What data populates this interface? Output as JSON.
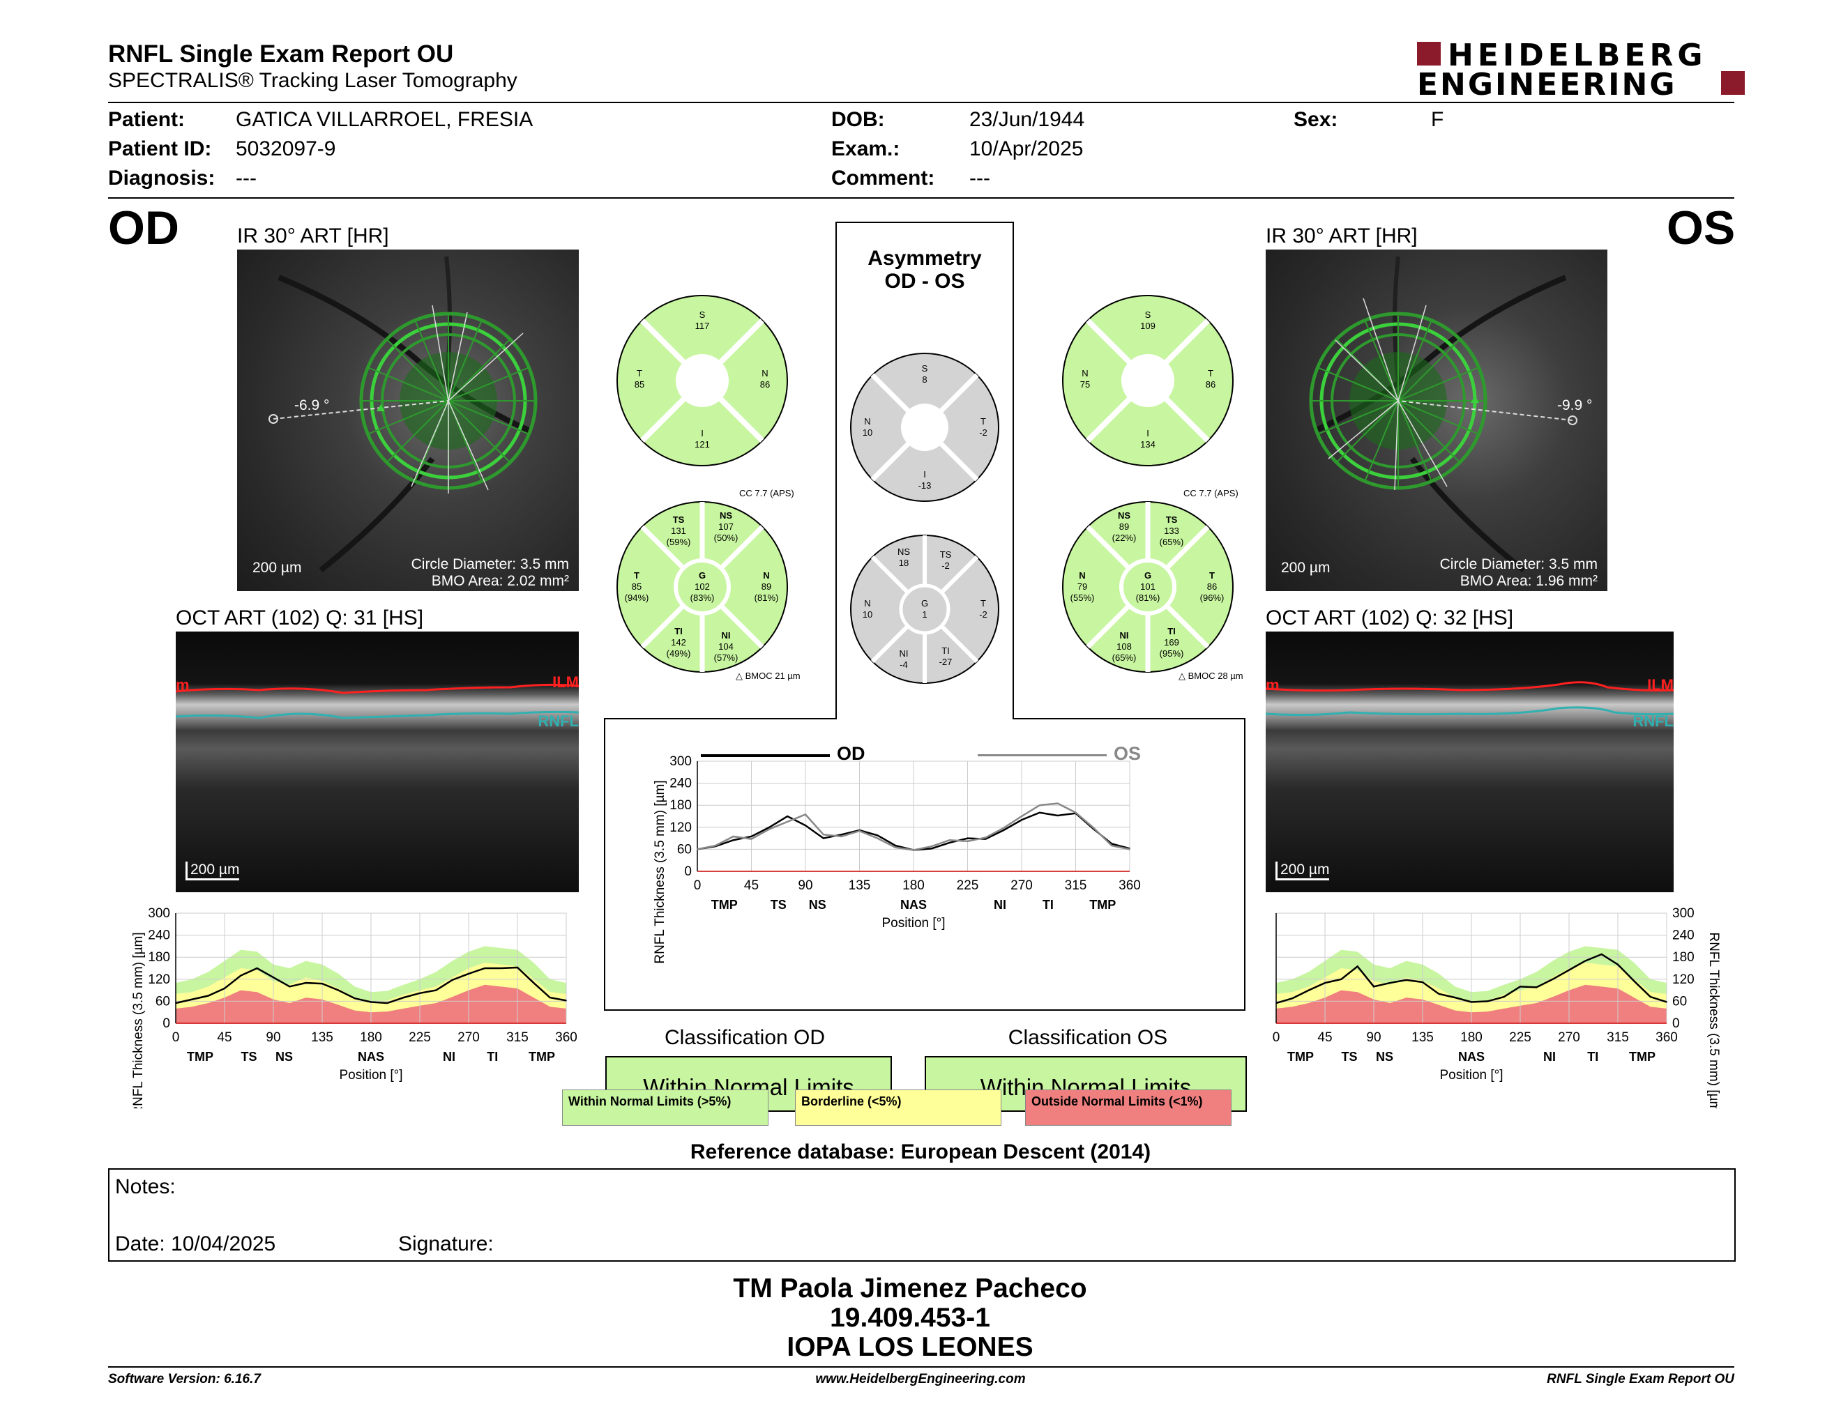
{
  "header": {
    "title": "RNFL Single Exam Report OU",
    "subtitle": "SPECTRALIS® Tracking Laser Tomography",
    "brand_line1": "HEIDELBERG",
    "brand_line2": "ENGINEERING",
    "brand_color": "#8b1a2b"
  },
  "patient": {
    "patient_label": "Patient:",
    "patient_value": "GATICA VILLARROEL, FRESIA",
    "id_label": "Patient ID:",
    "id_value": "5032097-9",
    "diagnosis_label": "Diagnosis:",
    "diagnosis_value": "---",
    "dob_label": "DOB:",
    "dob_value": "23/Jun/1944",
    "exam_label": "Exam.:",
    "exam_value": "10/Apr/2025",
    "comment_label": "Comment:",
    "comment_value": "---",
    "sex_label": "Sex:",
    "sex_value": "F"
  },
  "od": {
    "eye": "OD",
    "ir_title": "IR 30° ART [HR]",
    "angle": "-6.9 °",
    "scale": "200 µm",
    "circle_diameter": "Circle Diameter: 3.5 mm",
    "bmo_area": "BMO Area: 2.02 mm²",
    "oct_title": "OCT ART (102) Q: 31 [HS]",
    "oct_scale": "200 µm",
    "ilm": "ILM",
    "ilm_left": "m",
    "rnfl": "RNFL",
    "quad": {
      "s": "S",
      "s_val": "117",
      "t": "T",
      "t_val": "85",
      "n": "N",
      "n_val": "86",
      "i": "I",
      "i_val": "121"
    },
    "cc": "CC 7.7 (APS)",
    "bmoc": "BMOC 21 µm",
    "sectors": {
      "ts": [
        "TS",
        "131",
        "(59%)"
      ],
      "ns": [
        "NS",
        "107",
        "(50%)"
      ],
      "t": [
        "T",
        "85",
        "(94%)"
      ],
      "g": [
        "G",
        "102",
        "(83%)"
      ],
      "n": [
        "N",
        "89",
        "(81%)"
      ],
      "ti": [
        "TI",
        "142",
        "(49%)"
      ],
      "ni": [
        "NI",
        "104",
        "(57%)"
      ]
    },
    "classification_title": "Classification OD",
    "classification_value": "Within Normal Limits"
  },
  "os": {
    "eye": "OS",
    "ir_title": "IR 30° ART [HR]",
    "angle": "-9.9 °",
    "scale": "200 µm",
    "circle_diameter": "Circle Diameter: 3.5 mm",
    "bmo_area": "BMO Area: 1.96 mm²",
    "oct_title": "OCT ART (102) Q: 32 [HS]",
    "oct_scale": "200 µm",
    "ilm": "ILM",
    "ilm_left": "m",
    "rnfl": "RNFL",
    "quad": {
      "s": "S",
      "s_val": "109",
      "n": "N",
      "n_val": "75",
      "t": "T",
      "t_val": "86",
      "i": "I",
      "i_val": "134"
    },
    "cc": "CC 7.7 (APS)",
    "bmoc": "BMOC 28 µm",
    "sectors": {
      "ns": [
        "NS",
        "89",
        "(22%)"
      ],
      "ts": [
        "TS",
        "133",
        "(65%)"
      ],
      "n": [
        "N",
        "79",
        "(55%)"
      ],
      "g": [
        "G",
        "101",
        "(81%)"
      ],
      "t": [
        "T",
        "86",
        "(96%)"
      ],
      "ni": [
        "NI",
        "108",
        "(65%)"
      ],
      "ti": [
        "TI",
        "169",
        "(95%)"
      ]
    },
    "classification_title": "Classification OS",
    "classification_value": "Within Normal Limits"
  },
  "asym": {
    "title1": "Asymmetry",
    "title2": "OD - OS",
    "quad": {
      "s": "S",
      "s_val": "8",
      "n": "N",
      "n_val": "10",
      "t": "T",
      "t_val": "-2",
      "i": "I",
      "i_val": "-13"
    },
    "sectors": {
      "ns": [
        "NS",
        "18"
      ],
      "ts": [
        "TS",
        "-2"
      ],
      "n": [
        "N",
        "10"
      ],
      "g": [
        "G",
        "1"
      ],
      "t": [
        "T",
        "-2"
      ],
      "ni": [
        "NI",
        "-4"
      ],
      "ti": [
        "TI",
        "-27"
      ]
    },
    "legend_od": "OD",
    "legend_os": "OS"
  },
  "axes": {
    "ylabel": "RNFL Thickness (3.5 mm) [µm]",
    "xlabel": "Position [°]",
    "yticks": [
      "300",
      "240",
      "180",
      "120",
      "60",
      "0"
    ],
    "yticks_center": [
      "300",
      "240",
      "180",
      "120",
      "60",
      "0"
    ],
    "xticks": [
      "0",
      "45",
      "90",
      "135",
      "180",
      "225",
      "270",
      "315",
      "360"
    ],
    "sectors_od": [
      "TMP",
      "TS",
      "NS",
      "NAS",
      "NI",
      "TI",
      "TMP"
    ],
    "sectors_os": [
      "TMP",
      "TS",
      "NS",
      "NAS",
      "NI",
      "TI",
      "TMP"
    ],
    "sectors_center": [
      "TMP",
      "TS",
      "NS",
      "NAS",
      "NI",
      "TI",
      "TMP"
    ]
  },
  "legend": {
    "normal": "Within Normal Limits (>5%)",
    "border": "Borderline (<5%)",
    "outside": "Outside Normal Limits (<1%)",
    "color_normal": "#c8f5a0",
    "color_border": "#ffff99",
    "color_outside": "#f08080"
  },
  "reference": "Reference database: European Descent (2014)",
  "notes": {
    "notes_label": "Notes:",
    "date_label": "Date: 10/04/2025",
    "signature_label": "Signature:"
  },
  "signer": {
    "name": "TM Paola Jimenez Pacheco",
    "id": "19.409.453-1",
    "org": "IOPA LOS LEONES"
  },
  "footer": {
    "software": "Software Version: 6.16.7",
    "url": "www.HeidelbergEngineering.com",
    "report": "RNFL Single Exam Report OU"
  },
  "chart_data": [
    {
      "type": "line",
      "name_ref": "od-rnfl-profile",
      "x": [
        0,
        15,
        30,
        45,
        60,
        75,
        90,
        105,
        120,
        135,
        150,
        165,
        180,
        195,
        210,
        225,
        240,
        255,
        270,
        285,
        300,
        315,
        330,
        345,
        360
      ],
      "series": [
        {
          "name": "OD",
          "values": [
            55,
            65,
            75,
            95,
            130,
            150,
            125,
            100,
            110,
            108,
            90,
            68,
            58,
            55,
            70,
            82,
            90,
            118,
            135,
            150,
            150,
            152,
            110,
            70,
            62
          ]
        }
      ],
      "xlim": [
        0,
        360
      ],
      "ylim": [
        0,
        300
      ]
    },
    {
      "type": "line",
      "name_ref": "asymmetry-profile",
      "x": [
        0,
        15,
        30,
        45,
        60,
        75,
        90,
        105,
        120,
        135,
        150,
        165,
        180,
        195,
        210,
        225,
        240,
        255,
        270,
        285,
        300,
        315,
        330,
        345,
        360
      ],
      "series": [
        {
          "name": "OD",
          "values": [
            60,
            68,
            85,
            95,
            120,
            150,
            125,
            90,
            100,
            112,
            98,
            70,
            58,
            62,
            78,
            90,
            88,
            112,
            140,
            160,
            152,
            158,
            115,
            75,
            62
          ]
        },
        {
          "name": "OS",
          "values": [
            60,
            70,
            95,
            88,
            115,
            135,
            155,
            100,
            95,
            110,
            90,
            65,
            58,
            68,
            85,
            82,
            92,
            118,
            150,
            180,
            185,
            160,
            118,
            70,
            60
          ]
        }
      ],
      "xlim": [
        0,
        360
      ],
      "ylim": [
        0,
        300
      ]
    },
    {
      "type": "line",
      "name_ref": "os-rnfl-profile",
      "x": [
        0,
        15,
        30,
        45,
        60,
        75,
        90,
        105,
        120,
        135,
        150,
        165,
        180,
        195,
        210,
        225,
        240,
        255,
        270,
        285,
        300,
        315,
        330,
        345,
        360
      ],
      "series": [
        {
          "name": "OS",
          "values": [
            55,
            68,
            90,
            110,
            120,
            155,
            100,
            110,
            118,
            112,
            80,
            70,
            58,
            60,
            72,
            100,
            98,
            120,
            145,
            170,
            188,
            160,
            115,
            72,
            58
          ]
        }
      ],
      "xlim": [
        0,
        360
      ],
      "ylim": [
        0,
        300
      ]
    }
  ]
}
